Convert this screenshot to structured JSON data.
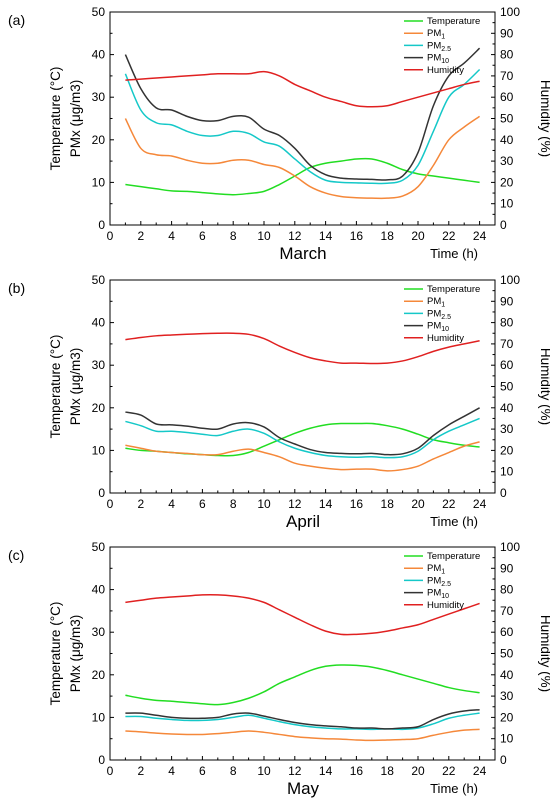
{
  "chart_data": [
    {
      "type": "line",
      "panel_label": "(a)",
      "month_label": "March",
      "x_axis_title": "Time (h)",
      "ylabel_left": [
        "Temperature (°C)",
        "PMx (μg/m3)"
      ],
      "ylabel_right": "Humidity (%)",
      "xlim": [
        0,
        25
      ],
      "ylim_left": [
        0,
        50
      ],
      "ylim_right": [
        0,
        100
      ],
      "x_ticks": [
        0,
        2,
        4,
        6,
        8,
        10,
        12,
        14,
        16,
        18,
        20,
        22,
        24
      ],
      "y_ticks_left": [
        0,
        10,
        20,
        30,
        40,
        50
      ],
      "y_ticks_right": [
        0,
        10,
        20,
        30,
        40,
        50,
        60,
        70,
        80,
        90,
        100
      ],
      "legend_position": "top-right",
      "x": [
        1,
        2,
        3,
        4,
        5,
        6,
        7,
        8,
        9,
        10,
        11,
        12,
        13,
        14,
        15,
        16,
        17,
        18,
        19,
        20,
        21,
        22,
        23,
        24
      ],
      "series": [
        {
          "name": "Temperature",
          "legend_main": "Temperature",
          "legend_sub": "",
          "axis": "left",
          "color": "#22dd22",
          "values": [
            9.5,
            9.0,
            8.5,
            8.0,
            7.9,
            7.6,
            7.3,
            7.1,
            7.4,
            7.9,
            9.5,
            11.5,
            13.5,
            14.5,
            15.0,
            15.5,
            15.5,
            14.5,
            13.0,
            12.0,
            11.5,
            11.0,
            10.5,
            10.0
          ]
        },
        {
          "name": "PM1",
          "legend_main": "PM",
          "legend_sub": "1",
          "axis": "left",
          "color": "#f5883a",
          "values": [
            25.0,
            18.0,
            16.5,
            16.2,
            15.2,
            14.5,
            14.5,
            15.2,
            15.2,
            14.2,
            13.5,
            11.5,
            9.0,
            7.5,
            6.7,
            6.4,
            6.3,
            6.3,
            6.8,
            9.0,
            14.0,
            20.0,
            23.0,
            25.5
          ]
        },
        {
          "name": "PM2.5",
          "legend_main": "PM",
          "legend_sub": "2.5",
          "axis": "left",
          "color": "#15c8c8",
          "values": [
            35.5,
            27.0,
            24.0,
            23.5,
            22.0,
            21.0,
            21.0,
            22.0,
            21.5,
            19.5,
            18.5,
            15.5,
            12.5,
            10.5,
            10.0,
            9.9,
            9.8,
            9.8,
            10.5,
            14.0,
            22.0,
            30.0,
            33.0,
            36.5
          ]
        },
        {
          "name": "PM10",
          "legend_main": "PM",
          "legend_sub": "10",
          "axis": "left",
          "color": "#333333",
          "values": [
            40.0,
            32.0,
            27.5,
            27.0,
            25.5,
            24.5,
            24.5,
            25.5,
            25.3,
            22.5,
            21.0,
            18.0,
            14.0,
            11.8,
            11.0,
            10.8,
            10.7,
            10.6,
            11.5,
            17.0,
            28.0,
            35.0,
            38.0,
            41.5
          ]
        },
        {
          "name": "Humidity",
          "legend_main": "Humidity",
          "legend_sub": "",
          "axis": "right",
          "color": "#e02020",
          "values": [
            68.0,
            68.5,
            69.0,
            69.5,
            70.0,
            70.5,
            71.0,
            71.0,
            71.0,
            72.0,
            70.0,
            66.0,
            63.0,
            60.0,
            58.0,
            56.0,
            55.5,
            56.0,
            58.0,
            60.0,
            62.0,
            64.0,
            66.0,
            67.5
          ]
        }
      ]
    },
    {
      "type": "line",
      "panel_label": "(b)",
      "month_label": "April",
      "x_axis_title": "Time (h)",
      "ylabel_left": [
        "Temperature (°C)",
        "PMx (μg/m3)"
      ],
      "ylabel_right": "Humidity (%)",
      "xlim": [
        0,
        25
      ],
      "ylim_left": [
        0,
        50
      ],
      "ylim_right": [
        0,
        100
      ],
      "x_ticks": [
        0,
        2,
        4,
        6,
        8,
        10,
        12,
        14,
        16,
        18,
        20,
        22,
        24
      ],
      "y_ticks_left": [
        0,
        10,
        20,
        30,
        40,
        50
      ],
      "y_ticks_right": [
        0,
        10,
        20,
        30,
        40,
        50,
        60,
        70,
        80,
        90,
        100
      ],
      "legend_position": "top-right",
      "x": [
        1,
        2,
        3,
        4,
        5,
        6,
        7,
        8,
        9,
        10,
        11,
        12,
        13,
        14,
        15,
        16,
        17,
        18,
        19,
        20,
        21,
        22,
        23,
        24
      ],
      "series": [
        {
          "name": "Temperature",
          "legend_main": "Temperature",
          "legend_sub": "",
          "axis": "left",
          "color": "#22dd22",
          "values": [
            10.5,
            10.0,
            9.8,
            9.5,
            9.2,
            9.0,
            8.8,
            8.8,
            9.5,
            11.0,
            12.5,
            14.0,
            15.2,
            16.0,
            16.3,
            16.3,
            16.3,
            15.8,
            15.0,
            13.8,
            12.5,
            11.8,
            11.2,
            10.8
          ]
        },
        {
          "name": "PM1",
          "legend_main": "PM",
          "legend_sub": "1",
          "axis": "left",
          "color": "#f5883a",
          "values": [
            11.2,
            10.5,
            9.8,
            9.5,
            9.3,
            9.0,
            9.0,
            9.8,
            10.3,
            9.5,
            8.5,
            7.0,
            6.3,
            5.8,
            5.5,
            5.6,
            5.6,
            5.2,
            5.5,
            6.3,
            8.0,
            9.5,
            11.0,
            12.0
          ]
        },
        {
          "name": "PM2.5",
          "legend_main": "PM",
          "legend_sub": "2.5",
          "axis": "left",
          "color": "#15c8c8",
          "values": [
            16.8,
            15.8,
            14.5,
            14.5,
            14.2,
            13.8,
            13.5,
            14.5,
            15.0,
            14.0,
            12.0,
            10.5,
            9.5,
            8.8,
            8.5,
            8.4,
            8.5,
            8.3,
            8.5,
            9.8,
            12.5,
            14.5,
            16.0,
            17.5
          ]
        },
        {
          "name": "PM10",
          "legend_main": "PM",
          "legend_sub": "10",
          "axis": "left",
          "color": "#333333",
          "values": [
            19.0,
            18.3,
            16.2,
            16.0,
            15.7,
            15.2,
            15.0,
            16.2,
            16.5,
            15.5,
            13.0,
            11.5,
            10.2,
            9.5,
            9.3,
            9.2,
            9.3,
            9.0,
            9.2,
            10.5,
            13.5,
            16.0,
            18.0,
            20.0
          ]
        },
        {
          "name": "Humidity",
          "legend_main": "Humidity",
          "legend_sub": "",
          "axis": "right",
          "color": "#e02020",
          "values": [
            72.0,
            73.0,
            73.8,
            74.2,
            74.5,
            74.8,
            75.0,
            75.0,
            74.5,
            72.5,
            69.0,
            66.0,
            63.5,
            62.0,
            61.0,
            61.0,
            60.8,
            61.0,
            62.0,
            64.0,
            66.5,
            68.5,
            70.0,
            71.5
          ]
        }
      ]
    },
    {
      "type": "line",
      "panel_label": "(c)",
      "month_label": "May",
      "x_axis_title": "Time (h)",
      "ylabel_left": [
        "Temperature (°C)",
        "PMx (μg/m3)"
      ],
      "ylabel_right": "Humidity (%)",
      "xlim": [
        0,
        25
      ],
      "ylim_left": [
        0,
        50
      ],
      "ylim_right": [
        0,
        100
      ],
      "x_ticks": [
        0,
        2,
        4,
        6,
        8,
        10,
        12,
        14,
        16,
        18,
        20,
        22,
        24
      ],
      "y_ticks_left": [
        0,
        10,
        20,
        30,
        40,
        50
      ],
      "y_ticks_right": [
        0,
        10,
        20,
        30,
        40,
        50,
        60,
        70,
        80,
        90,
        100
      ],
      "legend_position": "top-right",
      "x": [
        1,
        2,
        3,
        4,
        5,
        6,
        7,
        8,
        9,
        10,
        11,
        12,
        13,
        14,
        15,
        16,
        17,
        18,
        19,
        20,
        21,
        22,
        23,
        24
      ],
      "series": [
        {
          "name": "Temperature",
          "legend_main": "Temperature",
          "legend_sub": "",
          "axis": "left",
          "color": "#22dd22",
          "values": [
            15.2,
            14.5,
            14.0,
            13.8,
            13.5,
            13.2,
            13.0,
            13.5,
            14.5,
            16.0,
            18.0,
            19.5,
            21.0,
            22.0,
            22.3,
            22.2,
            21.8,
            21.0,
            20.0,
            19.0,
            18.0,
            17.0,
            16.3,
            15.8
          ]
        },
        {
          "name": "PM1",
          "legend_main": "PM",
          "legend_sub": "1",
          "axis": "left",
          "color": "#f5883a",
          "values": [
            6.8,
            6.6,
            6.3,
            6.1,
            6.0,
            6.0,
            6.2,
            6.5,
            6.8,
            6.5,
            6.0,
            5.5,
            5.2,
            5.0,
            4.9,
            4.7,
            4.6,
            4.7,
            4.8,
            5.0,
            5.8,
            6.5,
            7.0,
            7.2
          ]
        },
        {
          "name": "PM2.5",
          "legend_main": "PM",
          "legend_sub": "2.5",
          "axis": "left",
          "color": "#15c8c8",
          "values": [
            10.2,
            10.2,
            9.8,
            9.5,
            9.3,
            9.3,
            9.5,
            10.0,
            10.5,
            9.8,
            9.0,
            8.3,
            7.8,
            7.5,
            7.3,
            7.3,
            7.2,
            7.3,
            7.2,
            7.5,
            8.5,
            9.8,
            10.5,
            11.0
          ]
        },
        {
          "name": "PM10",
          "legend_main": "PM",
          "legend_sub": "10",
          "axis": "left",
          "color": "#333333",
          "values": [
            11.0,
            11.0,
            10.5,
            10.0,
            9.8,
            9.8,
            10.0,
            10.8,
            11.0,
            10.3,
            9.5,
            8.8,
            8.3,
            8.0,
            7.8,
            7.5,
            7.5,
            7.3,
            7.5,
            7.8,
            9.5,
            10.8,
            11.5,
            11.8
          ]
        },
        {
          "name": "Humidity",
          "legend_main": "Humidity",
          "legend_sub": "",
          "axis": "right",
          "color": "#e02020",
          "values": [
            74.0,
            75.0,
            76.0,
            76.5,
            77.0,
            77.5,
            77.5,
            77.0,
            76.0,
            74.0,
            70.5,
            67.0,
            63.5,
            60.5,
            59.0,
            59.0,
            59.5,
            60.5,
            62.0,
            63.5,
            66.0,
            68.5,
            71.0,
            73.5
          ]
        }
      ]
    }
  ]
}
